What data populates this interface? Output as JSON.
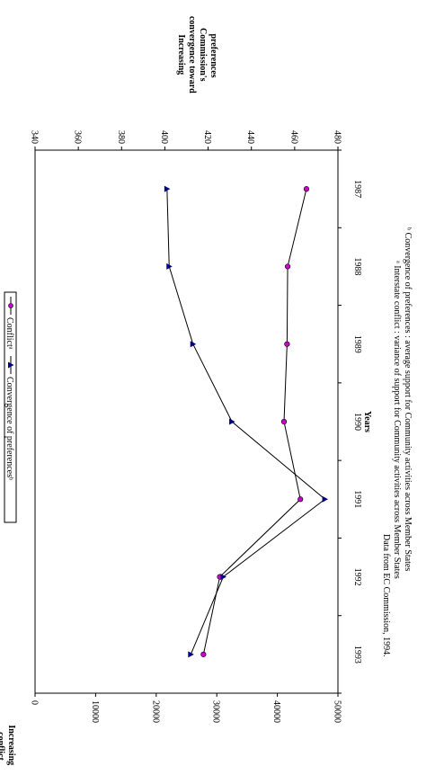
{
  "chart_data": {
    "type": "line",
    "orientation": "rotated-90-clockwise",
    "categories": [
      "1987",
      "1988",
      "1989",
      "1990",
      "1991",
      "1992",
      "1993"
    ],
    "series": [
      {
        "name": "Conflict",
        "legend_label": "Conflictᵃ",
        "axis": "primary",
        "color": "#cc00cc",
        "marker": "circle",
        "values": [
          44800,
          41700,
          41600,
          41100,
          43800,
          30500,
          27800
        ]
      },
      {
        "name": "Convergence of preferences",
        "legend_label": "Convergence of preferencesᵇ",
        "axis": "secondary",
        "color": "#000080",
        "marker": "triangle",
        "values": [
          401,
          402,
          413,
          431,
          474,
          427,
          412
        ]
      }
    ],
    "y_axis": {
      "label_line1": "Increasing",
      "label_line2": "conflict",
      "min": 0,
      "max": 50000,
      "ticks": [
        "0",
        "10000",
        "20000",
        "30000",
        "40000",
        "50000"
      ]
    },
    "y2_axis": {
      "label_line1": "Increasing",
      "label_line2": "convergence toward",
      "label_line3": "Commission's",
      "label_line4": "preferences",
      "min": 340,
      "max": 480,
      "ticks": [
        "340",
        "360",
        "380",
        "400",
        "420",
        "440",
        "460",
        "480"
      ]
    },
    "x_axis": {
      "label": "Years"
    },
    "legend_position": "top",
    "notes": {
      "source": "Data from EC Commission, 1994.",
      "a": "ᵃ Interstate conflict : variance of support for Community activities across Member States",
      "b": "ᵇ Convergence of preferences : average support for Community activities across Member States"
    }
  }
}
